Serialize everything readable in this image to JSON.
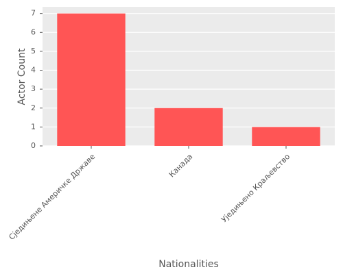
{
  "chart_data": {
    "type": "bar",
    "x_label": "Nationalities",
    "y_label": "Actor Count",
    "categories": [
      "Сједињене Америчке Државе",
      "Канада",
      "Уједињено Краљевство"
    ],
    "values": [
      7,
      2,
      1
    ],
    "color": "#ff5555",
    "ylim": [
      0,
      7.35
    ],
    "yticks": [
      0,
      1,
      2,
      3,
      4,
      5,
      6,
      7
    ],
    "grid": true
  }
}
